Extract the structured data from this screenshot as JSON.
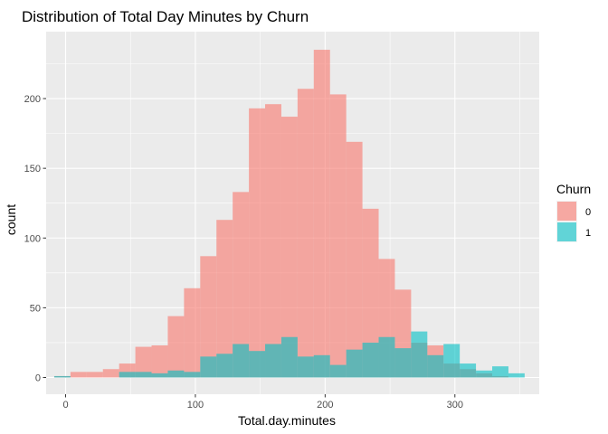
{
  "chart_data": {
    "type": "bar",
    "title": "Distribution of Total Day Minutes by Churn",
    "xlabel": "Total.day.minutes",
    "ylabel": "count",
    "xlim": [
      -15,
      365
    ],
    "ylim": [
      -12,
      248
    ],
    "x_ticks": [
      0,
      100,
      200,
      300
    ],
    "x_tick_labels": [
      "0",
      "100",
      "200",
      "300"
    ],
    "y_ticks": [
      0,
      50,
      100,
      150,
      200
    ],
    "y_tick_labels": [
      "0",
      "50",
      "100",
      "150",
      "200"
    ],
    "bin_width": 12.5,
    "x": [
      -2.5,
      10,
      22.5,
      35,
      47.5,
      60,
      72.5,
      85,
      97.5,
      110,
      122.5,
      135,
      147.5,
      160,
      172.5,
      185,
      197.5,
      210,
      222.5,
      235,
      247.5,
      260,
      272.5,
      285,
      297.5,
      310,
      322.5,
      335,
      347.5
    ],
    "series": [
      {
        "name": "0",
        "color": "#F8766D",
        "values": [
          1,
          4,
          4,
          6,
          10,
          22,
          23,
          44,
          64,
          87,
          113,
          133,
          193,
          196,
          187,
          207,
          235,
          203,
          169,
          121,
          85,
          63,
          25,
          23,
          10,
          6,
          3,
          1,
          0
        ]
      },
      {
        "name": "1",
        "color": "#00BFC4",
        "values": [
          1,
          0,
          0,
          0,
          4,
          4,
          3,
          5,
          4,
          15,
          17,
          24,
          19,
          24,
          29,
          15,
          16,
          9,
          20,
          25,
          29,
          21,
          33,
          16,
          24,
          10,
          5,
          8,
          3
        ]
      }
    ],
    "grid": true,
    "legend": {
      "title": "Churn",
      "position": "right",
      "entries": [
        "0",
        "1"
      ]
    }
  },
  "colors": {
    "panel_background": "#EBEBEB",
    "grid_major": "#FFFFFF",
    "fill_0": "#F8766D",
    "fill_1": "#00BFC4"
  }
}
